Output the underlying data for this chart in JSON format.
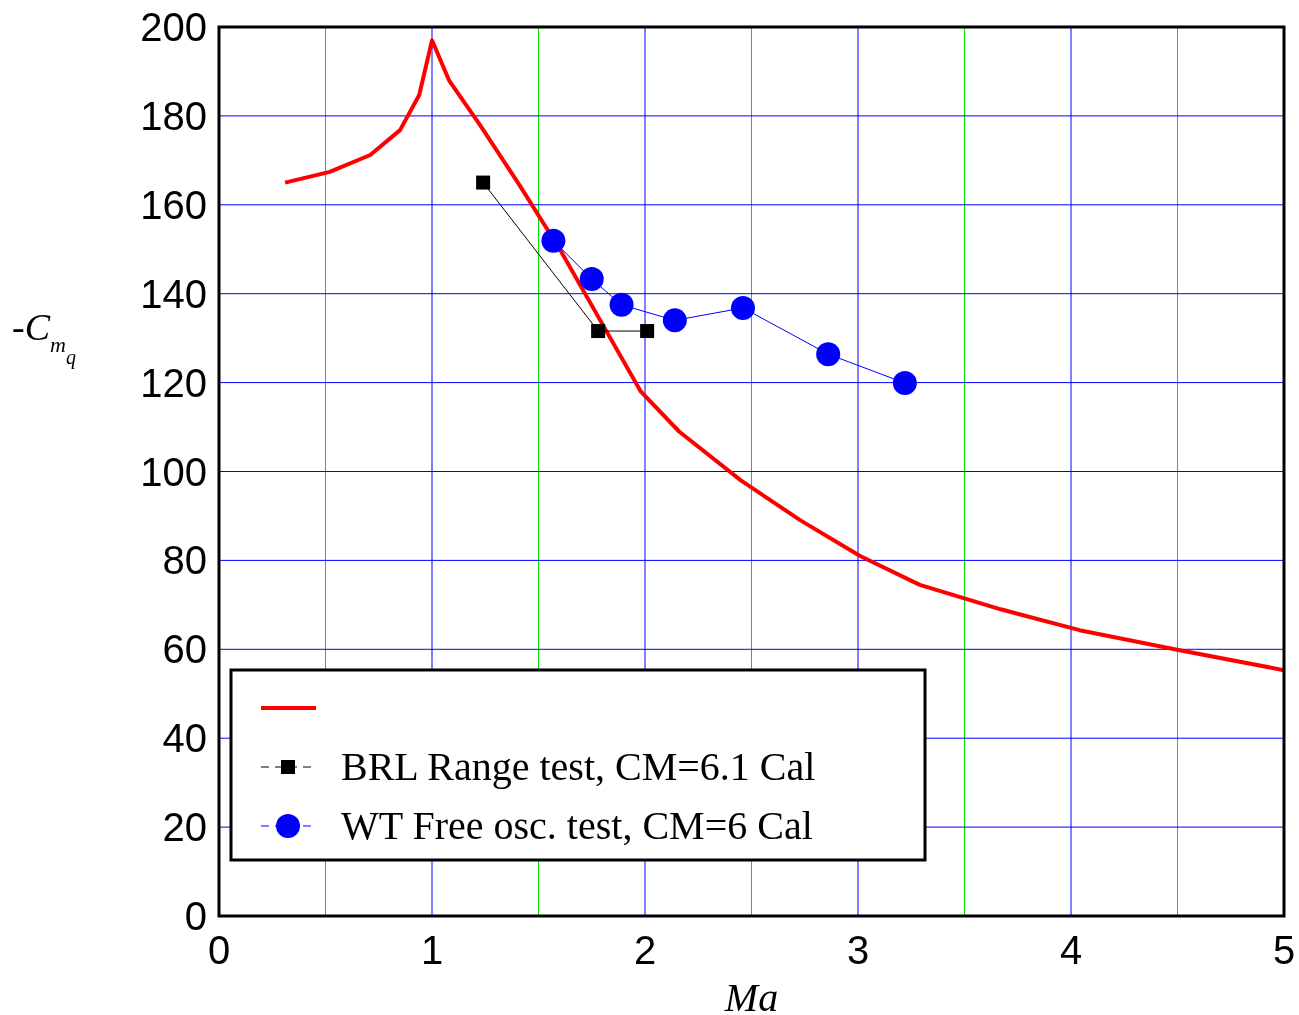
{
  "chart_data": {
    "type": "line",
    "xlabel": "Ma",
    "ylabel": "-C$_{m}$$_{q}$",
    "xlim": [
      0,
      5
    ],
    "xticks": [
      0,
      {
        "value": 0.5,
        "label": null
      },
      1,
      {
        "value": 1.5,
        "label": null
      },
      2,
      {
        "value": 2.5,
        "label": null
      },
      3,
      {
        "value": 3.5,
        "label": null
      },
      4,
      {
        "value": 4.5,
        "label": null
      },
      5
    ],
    "ylim": [
      0,
      200
    ],
    "yticks": [
      0,
      20,
      40,
      60,
      80,
      100,
      120,
      140,
      160,
      180,
      200
    ],
    "grid": true,
    "legend": "bottom left",
    "line_style": "solid",
    "series": [
      {
        "color": "#ff0000",
        "marker": "none",
        "x": [
          0.31,
          0.52,
          0.71,
          0.85,
          0.94,
          1.0,
          1.08,
          1.225,
          1.41,
          1.6,
          1.79,
          1.98,
          2.16,
          2.45,
          2.73,
          3.01,
          3.29,
          3.67,
          4.04,
          4.51,
          5.0
        ],
        "values": [
          165,
          167.4,
          171.2,
          176.8,
          184.7,
          197,
          188,
          178,
          164.5,
          150,
          134,
          118,
          109,
          98,
          89,
          81,
          74.5,
          69,
          64.3,
          59.8,
          55.3
        ]
      },
      {
        "name": "BRL Range test, CM=6.1 Cal",
        "color": "#000000",
        "marker": "square",
        "x": [
          1.24,
          1.78,
          2.01
        ],
        "values": [
          165,
          131.6,
          131.6
        ]
      },
      {
        "name": "WT Free osc. test, CM=6 Cal",
        "color": "#0000ff",
        "marker": "circle",
        "x": [
          1.57,
          1.75,
          1.89,
          2.14,
          2.46,
          2.86,
          3.22
        ],
        "values": [
          151.9,
          143.3,
          137.5,
          134,
          136.8,
          126.4,
          119.9
        ]
      }
    ]
  }
}
